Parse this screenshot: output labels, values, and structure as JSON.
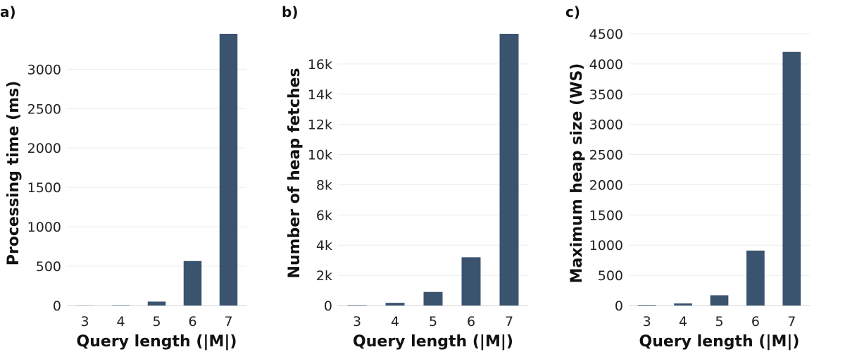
{
  "chart_data": [
    {
      "type": "bar",
      "panel_label": "a)",
      "categories": [
        "3",
        "4",
        "5",
        "6",
        "7"
      ],
      "values": [
        2,
        5,
        50,
        565,
        3450
      ],
      "xlabel": "Query length (|M|)",
      "ylabel": "Processing time (ms)",
      "yticks": [
        0,
        500,
        1000,
        1500,
        2000,
        2500,
        3000
      ],
      "ytick_labels": [
        "0",
        "500",
        "1000",
        "1500",
        "2000",
        "2500",
        "3000"
      ],
      "ylim": [
        0,
        3450
      ],
      "bar_color": "#3a5470",
      "grid": true
    },
    {
      "type": "bar",
      "panel_label": "b)",
      "categories": [
        "3",
        "4",
        "5",
        "6",
        "7"
      ],
      "values": [
        30,
        180,
        900,
        3200,
        18000
      ],
      "xlabel": "Query length (|M|)",
      "ylabel": "Number of heap fetches",
      "yticks": [
        0,
        2000,
        4000,
        6000,
        8000,
        10000,
        12000,
        14000,
        16000
      ],
      "ytick_labels": [
        "0",
        "2k",
        "4k",
        "6k",
        "8k",
        "10k",
        "12k",
        "14k",
        "16k"
      ],
      "ylim": [
        0,
        18000
      ],
      "bar_color": "#3a5470",
      "grid": true
    },
    {
      "type": "bar",
      "panel_label": "c)",
      "categories": [
        "3",
        "4",
        "5",
        "6",
        "7"
      ],
      "values": [
        10,
        35,
        170,
        910,
        4200
      ],
      "xlabel": "Query length (|M|)",
      "ylabel": "Maximum heap size (WS)",
      "yticks": [
        0,
        500,
        1000,
        1500,
        2000,
        2500,
        3000,
        3500,
        4000,
        4500
      ],
      "ytick_labels": [
        "0",
        "500",
        "1000",
        "1500",
        "2000",
        "2500",
        "3000",
        "3500",
        "4000",
        "4500"
      ],
      "ylim": [
        0,
        4500
      ],
      "bar_color": "#3a5470",
      "grid": true
    }
  ]
}
